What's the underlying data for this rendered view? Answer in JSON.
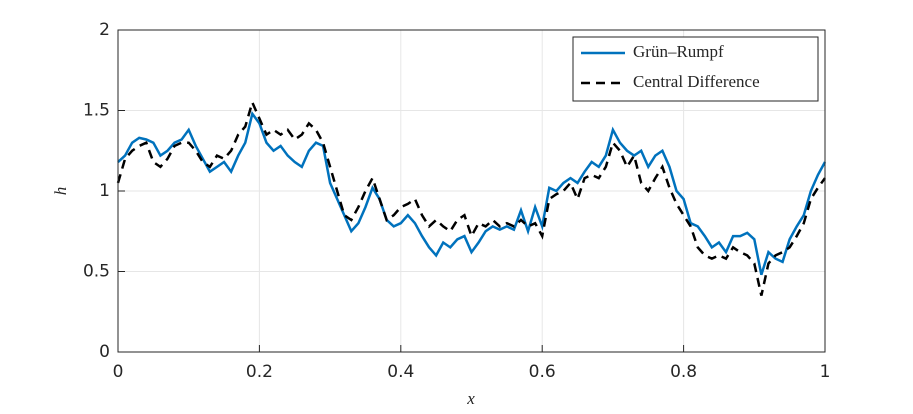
{
  "chart_data": {
    "type": "line",
    "x_label": "x",
    "y_label": "h",
    "x": [
      0,
      0.01,
      0.02,
      0.03,
      0.04,
      0.05,
      0.06,
      0.07,
      0.08,
      0.09,
      0.1,
      0.11,
      0.12,
      0.13,
      0.14,
      0.15,
      0.16,
      0.17,
      0.18,
      0.19,
      0.2,
      0.21,
      0.22,
      0.23,
      0.24,
      0.25,
      0.26,
      0.27,
      0.28,
      0.29,
      0.3,
      0.31,
      0.32,
      0.33,
      0.34,
      0.35,
      0.36,
      0.37,
      0.38,
      0.39,
      0.4,
      0.41,
      0.42,
      0.43,
      0.44,
      0.45,
      0.46,
      0.47,
      0.48,
      0.49,
      0.5,
      0.51,
      0.52,
      0.53,
      0.54,
      0.55,
      0.56,
      0.57,
      0.58,
      0.59,
      0.6,
      0.61,
      0.62,
      0.63,
      0.64,
      0.65,
      0.66,
      0.67,
      0.68,
      0.69,
      0.7,
      0.71,
      0.72,
      0.73,
      0.74,
      0.75,
      0.76,
      0.77,
      0.78,
      0.79,
      0.8,
      0.81,
      0.82,
      0.83,
      0.84,
      0.85,
      0.86,
      0.87,
      0.88,
      0.89,
      0.9,
      0.91,
      0.92,
      0.93,
      0.94,
      0.95,
      0.96,
      0.97,
      0.98,
      0.99,
      1
    ],
    "series": [
      {
        "name": "Grün–Rumpf",
        "color": "#0072bd",
        "dash": false,
        "values": [
          1.18,
          1.22,
          1.3,
          1.33,
          1.32,
          1.3,
          1.22,
          1.25,
          1.3,
          1.32,
          1.38,
          1.28,
          1.2,
          1.12,
          1.15,
          1.18,
          1.12,
          1.22,
          1.3,
          1.48,
          1.42,
          1.3,
          1.25,
          1.28,
          1.22,
          1.18,
          1.15,
          1.25,
          1.3,
          1.28,
          1.05,
          0.95,
          0.85,
          0.75,
          0.8,
          0.9,
          1.02,
          0.95,
          0.82,
          0.78,
          0.8,
          0.85,
          0.8,
          0.72,
          0.65,
          0.6,
          0.68,
          0.65,
          0.7,
          0.72,
          0.62,
          0.68,
          0.75,
          0.78,
          0.76,
          0.78,
          0.76,
          0.88,
          0.75,
          0.9,
          0.78,
          1.02,
          1.0,
          1.05,
          1.08,
          1.05,
          1.12,
          1.18,
          1.15,
          1.22,
          1.38,
          1.3,
          1.25,
          1.22,
          1.25,
          1.15,
          1.22,
          1.25,
          1.15,
          1.0,
          0.95,
          0.8,
          0.78,
          0.72,
          0.65,
          0.68,
          0.62,
          0.72,
          0.72,
          0.74,
          0.7,
          0.48,
          0.62,
          0.58,
          0.56,
          0.7,
          0.78,
          0.85,
          1.0,
          1.1,
          1.18
        ]
      },
      {
        "name": "Central Difference",
        "color": "#000000",
        "dash": true,
        "values": [
          1.05,
          1.2,
          1.25,
          1.28,
          1.3,
          1.18,
          1.15,
          1.2,
          1.28,
          1.3,
          1.3,
          1.25,
          1.18,
          1.15,
          1.22,
          1.2,
          1.25,
          1.35,
          1.4,
          1.55,
          1.45,
          1.35,
          1.38,
          1.35,
          1.38,
          1.32,
          1.35,
          1.42,
          1.38,
          1.3,
          1.15,
          1.0,
          0.85,
          0.82,
          0.9,
          1.0,
          1.08,
          0.95,
          0.82,
          0.85,
          0.9,
          0.92,
          0.95,
          0.85,
          0.78,
          0.82,
          0.78,
          0.75,
          0.82,
          0.85,
          0.72,
          0.8,
          0.78,
          0.82,
          0.78,
          0.8,
          0.78,
          0.82,
          0.78,
          0.8,
          0.72,
          0.95,
          0.98,
          1.0,
          1.05,
          0.95,
          1.08,
          1.1,
          1.08,
          1.15,
          1.3,
          1.25,
          1.15,
          1.22,
          1.05,
          1.0,
          1.08,
          1.15,
          1.02,
          0.92,
          0.85,
          0.78,
          0.65,
          0.6,
          0.58,
          0.6,
          0.58,
          0.65,
          0.62,
          0.6,
          0.55,
          0.35,
          0.55,
          0.6,
          0.62,
          0.65,
          0.72,
          0.8,
          0.95,
          1.02,
          1.08
        ]
      }
    ],
    "xlim": [
      0,
      1
    ],
    "xticks": [
      0,
      0.2,
      0.4,
      0.6,
      0.8,
      1
    ],
    "ylim": [
      0,
      2
    ],
    "yticks": [
      0,
      0.5,
      1,
      1.5,
      2
    ],
    "grid": true,
    "legend": "upper right"
  }
}
